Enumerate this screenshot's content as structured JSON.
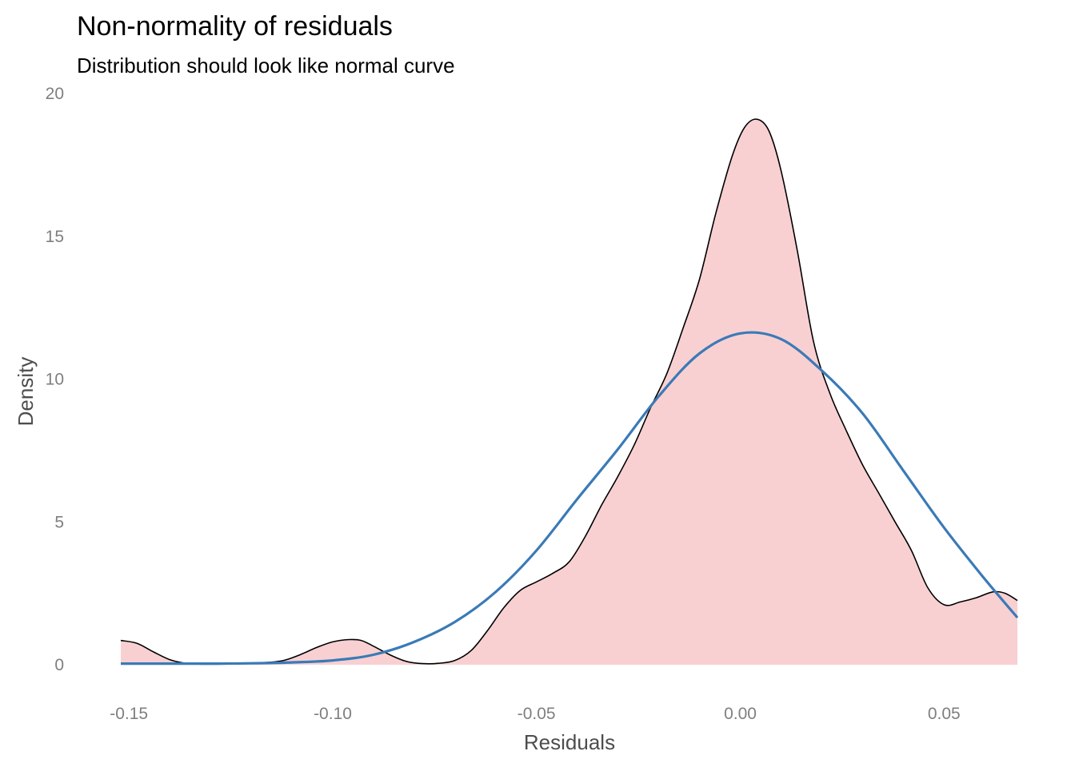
{
  "chart_data": {
    "type": "area",
    "title": "Non-normality of residuals",
    "subtitle": "Distribution should look like normal curve",
    "xlabel": "Residuals",
    "ylabel": "Density",
    "xlim": [
      -0.152,
      0.068
    ],
    "ylim": [
      0,
      20
    ],
    "x_ticks": [
      -0.15,
      -0.1,
      -0.05,
      0.0,
      0.05
    ],
    "x_tick_labels": [
      "-0.15",
      "-0.10",
      "-0.05",
      "0.00",
      "0.05"
    ],
    "y_ticks": [
      0,
      5,
      10,
      15,
      20
    ],
    "y_tick_labels": [
      "0",
      "5",
      "10",
      "15",
      "20"
    ],
    "grid": false,
    "colors": {
      "density_fill": "#f8d0d2",
      "density_line": "#000000",
      "normal_line": "#3a7ab7"
    },
    "series": [
      {
        "x": [
          -0.152,
          -0.148,
          -0.144,
          -0.14,
          -0.136,
          -0.132,
          -0.128,
          -0.124,
          -0.12,
          -0.116,
          -0.112,
          -0.108,
          -0.104,
          -0.1,
          -0.096,
          -0.093,
          -0.09,
          -0.086,
          -0.082,
          -0.078,
          -0.074,
          -0.07,
          -0.066,
          -0.062,
          -0.058,
          -0.054,
          -0.05,
          -0.046,
          -0.042,
          -0.038,
          -0.034,
          -0.03,
          -0.026,
          -0.022,
          -0.018,
          -0.014,
          -0.01,
          -0.006,
          -0.002,
          0.001,
          0.004,
          0.007,
          0.01,
          0.014,
          0.018,
          0.022,
          0.026,
          0.03,
          0.034,
          0.038,
          0.042,
          0.046,
          0.05,
          0.054,
          0.058,
          0.062,
          0.065,
          0.068
        ],
        "values": [
          0.85,
          0.75,
          0.45,
          0.18,
          0.05,
          0.02,
          0.02,
          0.03,
          0.05,
          0.08,
          0.15,
          0.35,
          0.6,
          0.8,
          0.88,
          0.85,
          0.65,
          0.35,
          0.12,
          0.04,
          0.05,
          0.15,
          0.5,
          1.2,
          2.0,
          2.6,
          2.9,
          3.2,
          3.6,
          4.5,
          5.6,
          6.6,
          7.7,
          9.0,
          10.2,
          11.8,
          13.5,
          15.8,
          17.8,
          18.8,
          19.1,
          18.7,
          17.3,
          14.5,
          11.3,
          9.5,
          8.2,
          7.0,
          6.0,
          5.0,
          4.0,
          2.7,
          2.1,
          2.2,
          2.35,
          2.55,
          2.5,
          2.25
        ]
      },
      {
        "x": [
          -0.152,
          -0.145,
          -0.14,
          -0.13,
          -0.12,
          -0.11,
          -0.1,
          -0.09,
          -0.08,
          -0.07,
          -0.06,
          -0.05,
          -0.04,
          -0.03,
          -0.02,
          -0.01,
          0.0,
          0.01,
          0.02,
          0.03,
          0.04,
          0.05,
          0.06,
          0.068
        ],
        "values": [
          0.04,
          0.04,
          0.04,
          0.04,
          0.05,
          0.08,
          0.15,
          0.35,
          0.8,
          1.5,
          2.55,
          4.0,
          5.8,
          7.55,
          9.4,
          10.9,
          11.6,
          11.4,
          10.3,
          8.8,
          6.8,
          4.8,
          3.0,
          1.65
        ]
      }
    ]
  }
}
